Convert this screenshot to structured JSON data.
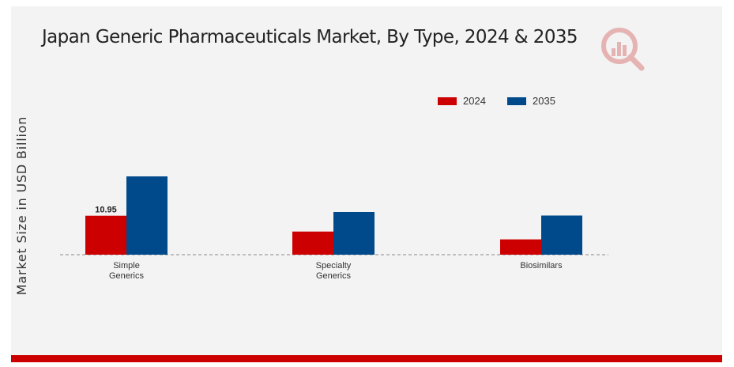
{
  "chart_data": {
    "type": "bar",
    "title": "Japan Generic Pharmaceuticals Market, By Type, 2024 & 2035",
    "xlabel": "",
    "ylabel": "Market Size in USD Billion",
    "categories": [
      "Simple\nGenerics",
      "Specialty\nGenerics",
      "Biosimilars"
    ],
    "series": [
      {
        "name": "2024",
        "color": "#cc0000",
        "values": [
          10.95,
          6.5,
          4.3
        ]
      },
      {
        "name": "2035",
        "color": "#004a8c",
        "values": [
          22.0,
          12.0,
          11.0
        ]
      }
    ],
    "data_labels": [
      {
        "series": 0,
        "index": 0,
        "text": "10.95"
      }
    ],
    "ylim": [
      0,
      45
    ],
    "grid": false,
    "baseline": "dashed",
    "legend": "top-right"
  },
  "colors": {
    "frame_background": "#f3f3f3",
    "accent_bar": "#cc0000"
  },
  "logo": {
    "icon": "bar-chart-magnifier-icon"
  }
}
